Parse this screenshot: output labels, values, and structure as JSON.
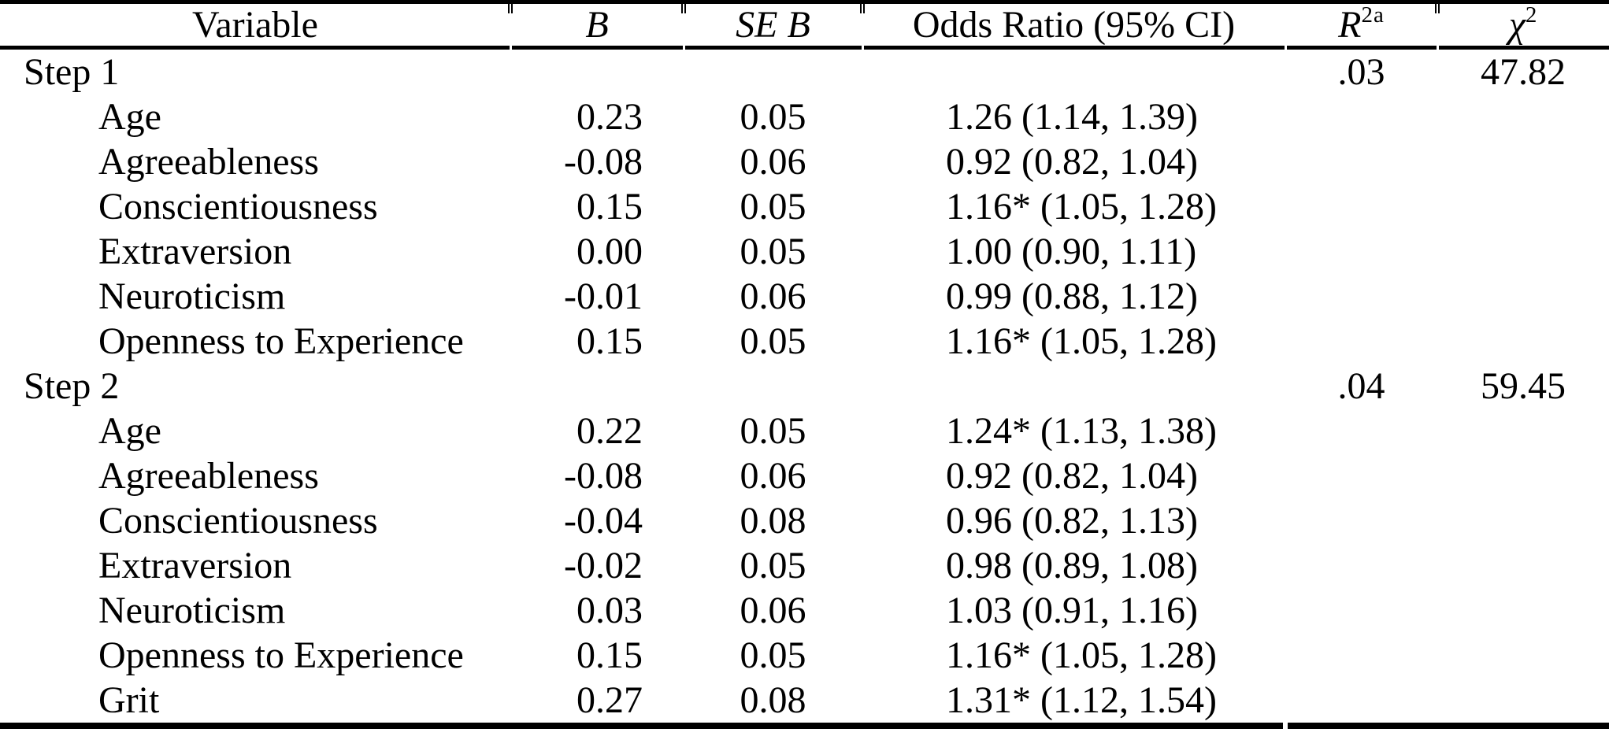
{
  "table": {
    "headers": {
      "variable": "Variable",
      "b": "B",
      "se_b": "SE B",
      "odds_ratio": "Odds Ratio (95% CI)",
      "r2": {
        "base": "R",
        "sup": "2a"
      },
      "chi2": {
        "base": "χ",
        "sup": "2"
      }
    },
    "rows": [
      {
        "variable": "Step 1",
        "indent": false,
        "b": "",
        "se_b": "",
        "odds_ratio": "",
        "r2": ".03",
        "chi2": "47.82"
      },
      {
        "variable": "Age",
        "indent": true,
        "b": "0.23",
        "se_b": "0.05",
        "odds_ratio": "1.26 (1.14, 1.39)",
        "r2": "",
        "chi2": ""
      },
      {
        "variable": "Agreeableness",
        "indent": true,
        "b": "-0.08",
        "se_b": "0.06",
        "odds_ratio": "0.92 (0.82, 1.04)",
        "r2": "",
        "chi2": ""
      },
      {
        "variable": "Conscientiousness",
        "indent": true,
        "b": "0.15",
        "se_b": "0.05",
        "odds_ratio": "1.16* (1.05, 1.28)",
        "r2": "",
        "chi2": ""
      },
      {
        "variable": "Extraversion",
        "indent": true,
        "b": "0.00",
        "se_b": "0.05",
        "odds_ratio": "1.00 (0.90, 1.11)",
        "r2": "",
        "chi2": ""
      },
      {
        "variable": "Neuroticism",
        "indent": true,
        "b": "-0.01",
        "se_b": "0.06",
        "odds_ratio": "0.99 (0.88, 1.12)",
        "r2": "",
        "chi2": ""
      },
      {
        "variable": "Openness to Experience",
        "indent": true,
        "b": "0.15",
        "se_b": "0.05",
        "odds_ratio": "1.16* (1.05, 1.28)",
        "r2": "",
        "chi2": ""
      },
      {
        "variable": "Step 2",
        "indent": false,
        "b": "",
        "se_b": "",
        "odds_ratio": "",
        "r2": ".04",
        "chi2": "59.45"
      },
      {
        "variable": "Age",
        "indent": true,
        "b": "0.22",
        "se_b": "0.05",
        "odds_ratio": "1.24* (1.13, 1.38)",
        "r2": "",
        "chi2": ""
      },
      {
        "variable": "Agreeableness",
        "indent": true,
        "b": "-0.08",
        "se_b": "0.06",
        "odds_ratio": "0.92 (0.82, 1.04)",
        "r2": "",
        "chi2": ""
      },
      {
        "variable": "Conscientiousness",
        "indent": true,
        "b": "-0.04",
        "se_b": "0.08",
        "odds_ratio": "0.96 (0.82, 1.13)",
        "r2": "",
        "chi2": ""
      },
      {
        "variable": "Extraversion",
        "indent": true,
        "b": "-0.02",
        "se_b": "0.05",
        "odds_ratio": "0.98 (0.89, 1.08)",
        "r2": "",
        "chi2": ""
      },
      {
        "variable": "Neuroticism",
        "indent": true,
        "b": "0.03",
        "se_b": "0.06",
        "odds_ratio": "1.03 (0.91, 1.16)",
        "r2": "",
        "chi2": ""
      },
      {
        "variable": "Openness to Experience",
        "indent": true,
        "b": "0.15",
        "se_b": "0.05",
        "odds_ratio": "1.16* (1.05, 1.28)",
        "r2": "",
        "chi2": ""
      },
      {
        "variable": "Grit",
        "indent": true,
        "b": "0.27",
        "se_b": "0.08",
        "odds_ratio": "1.31* (1.12, 1.54)",
        "r2": "",
        "chi2": ""
      }
    ],
    "colors": {
      "text": "#000000",
      "background": "#ffffff",
      "rule": "#000000"
    }
  }
}
